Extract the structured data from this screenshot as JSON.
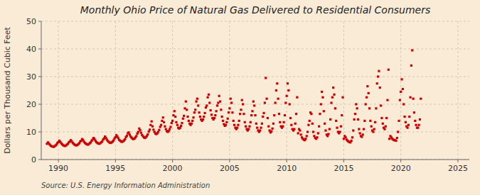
{
  "chart_data": {
    "type": "scatter",
    "title": "Monthly Ohio Price of Natural Gas Delivered to Residential Consumers",
    "ylabel": "Dollars per Thousand Cubic Feet",
    "annotation": "Source: U.S. Energy Information Administration",
    "color": "#cc0000",
    "marker": "square",
    "grid": true,
    "xlim": [
      1988.5,
      2026.0
    ],
    "ylim": [
      0,
      50
    ],
    "xticks": [
      1990,
      1995,
      2000,
      2005,
      2010,
      2015,
      2020,
      2025
    ],
    "yticks": [
      0,
      10,
      20,
      30,
      40,
      50
    ],
    "x": [
      1989,
      1989.0833333333333,
      1989.1666666666667,
      1989.25,
      1989.3333333333333,
      1989.4166666666667,
      1989.5,
      1989.5833333333333,
      1989.6666666666667,
      1989.75,
      1989.8333333333333,
      1989.9166666666667,
      1990,
      1990.0833333333333,
      1990.1666666666667,
      1990.25,
      1990.3333333333333,
      1990.4166666666667,
      1990.5,
      1990.5833333333333,
      1990.6666666666667,
      1990.75,
      1990.8333333333333,
      1990.9166666666667,
      1991,
      1991.0833333333333,
      1991.1666666666667,
      1991.25,
      1991.3333333333333,
      1991.4166666666667,
      1991.5,
      1991.5833333333333,
      1991.6666666666667,
      1991.75,
      1991.8333333333333,
      1991.9166666666667,
      1992,
      1992.0833333333333,
      1992.1666666666667,
      1992.25,
      1992.3333333333333,
      1992.4166666666667,
      1992.5,
      1992.5833333333333,
      1992.6666666666667,
      1992.75,
      1992.8333333333333,
      1992.9166666666667,
      1993,
      1993.0833333333333,
      1993.1666666666667,
      1993.25,
      1993.3333333333333,
      1993.4166666666667,
      1993.5,
      1993.5833333333333,
      1993.6666666666667,
      1993.75,
      1993.8333333333333,
      1993.9166666666667,
      1994,
      1994.0833333333333,
      1994.1666666666667,
      1994.25,
      1994.3333333333333,
      1994.4166666666667,
      1994.5,
      1994.5833333333333,
      1994.6666666666667,
      1994.75,
      1994.8333333333333,
      1994.9166666666667,
      1995,
      1995.0833333333333,
      1995.1666666666667,
      1995.25,
      1995.3333333333333,
      1995.4166666666667,
      1995.5,
      1995.5833333333333,
      1995.6666666666667,
      1995.75,
      1995.8333333333333,
      1995.9166666666667,
      1996,
      1996.0833333333333,
      1996.1666666666667,
      1996.25,
      1996.3333333333333,
      1996.4166666666667,
      1996.5,
      1996.5833333333333,
      1996.6666666666667,
      1996.75,
      1996.8333333333333,
      1996.9166666666667,
      1997,
      1997.0833333333333,
      1997.1666666666667,
      1997.25,
      1997.3333333333333,
      1997.4166666666667,
      1997.5,
      1997.5833333333333,
      1997.6666666666667,
      1997.75,
      1997.8333333333333,
      1997.9166666666667,
      1998,
      1998.0833333333333,
      1998.1666666666667,
      1998.25,
      1998.3333333333333,
      1998.4166666666667,
      1998.5,
      1998.5833333333333,
      1998.6666666666667,
      1998.75,
      1998.8333333333333,
      1998.9166666666667,
      1999,
      1999.0833333333333,
      1999.1666666666667,
      1999.25,
      1999.3333333333333,
      1999.4166666666667,
      1999.5,
      1999.5833333333333,
      1999.6666666666667,
      1999.75,
      1999.8333333333333,
      1999.9166666666667,
      2000,
      2000.0833333333333,
      2000.1666666666667,
      2000.25,
      2000.3333333333333,
      2000.4166666666667,
      2000.5,
      2000.5833333333333,
      2000.6666666666667,
      2000.75,
      2000.8333333333333,
      2000.9166666666667,
      2001,
      2001.0833333333333,
      2001.1666666666667,
      2001.25,
      2001.3333333333333,
      2001.4166666666667,
      2001.5,
      2001.5833333333333,
      2001.6666666666667,
      2001.75,
      2001.8333333333333,
      2001.9166666666667,
      2002,
      2002.0833333333333,
      2002.1666666666667,
      2002.25,
      2002.3333333333333,
      2002.4166666666667,
      2002.5,
      2002.5833333333333,
      2002.6666666666667,
      2002.75,
      2002.8333333333333,
      2002.9166666666667,
      2003,
      2003.0833333333333,
      2003.1666666666667,
      2003.25,
      2003.3333333333333,
      2003.4166666666667,
      2003.5,
      2003.5833333333333,
      2003.6666666666667,
      2003.75,
      2003.8333333333333,
      2003.9166666666667,
      2004,
      2004.0833333333333,
      2004.1666666666667,
      2004.25,
      2004.3333333333333,
      2004.4166666666667,
      2004.5,
      2004.5833333333333,
      2004.6666666666667,
      2004.75,
      2004.8333333333333,
      2004.9166666666667,
      2005,
      2005.0833333333333,
      2005.1666666666667,
      2005.25,
      2005.3333333333333,
      2005.4166666666667,
      2005.5,
      2005.5833333333333,
      2005.6666666666667,
      2005.75,
      2005.8333333333333,
      2005.9166666666667,
      2006,
      2006.0833333333333,
      2006.1666666666667,
      2006.25,
      2006.3333333333333,
      2006.4166666666667,
      2006.5,
      2006.5833333333333,
      2006.6666666666667,
      2006.75,
      2006.8333333333333,
      2006.9166666666667,
      2007,
      2007.0833333333333,
      2007.1666666666667,
      2007.25,
      2007.3333333333333,
      2007.4166666666667,
      2007.5,
      2007.5833333333333,
      2007.6666666666667,
      2007.75,
      2007.8333333333333,
      2007.9166666666667,
      2008,
      2008.0833333333333,
      2008.1666666666667,
      2008.25,
      2008.3333333333333,
      2008.4166666666667,
      2008.5,
      2008.5833333333333,
      2008.6666666666667,
      2008.75,
      2008.8333333333333,
      2008.9166666666667,
      2009,
      2009.0833333333333,
      2009.1666666666667,
      2009.25,
      2009.3333333333333,
      2009.4166666666667,
      2009.5,
      2009.5833333333333,
      2009.6666666666667,
      2009.75,
      2009.8333333333333,
      2009.9166666666667,
      2010,
      2010.0833333333333,
      2010.1666666666667,
      2010.25,
      2010.3333333333333,
      2010.4166666666667,
      2010.5,
      2010.5833333333333,
      2010.6666666666667,
      2010.75,
      2010.8333333333333,
      2010.9166666666667,
      2011,
      2011.0833333333333,
      2011.1666666666667,
      2011.25,
      2011.3333333333333,
      2011.4166666666667,
      2011.5,
      2011.5833333333333,
      2011.6666666666667,
      2011.75,
      2011.8333333333333,
      2011.9166666666667,
      2012,
      2012.0833333333333,
      2012.1666666666667,
      2012.25,
      2012.3333333333333,
      2012.4166666666667,
      2012.5,
      2012.5833333333333,
      2012.6666666666667,
      2012.75,
      2012.8333333333333,
      2012.9166666666667,
      2013,
      2013.0833333333333,
      2013.1666666666667,
      2013.25,
      2013.3333333333333,
      2013.4166666666667,
      2013.5,
      2013.5833333333333,
      2013.6666666666667,
      2013.75,
      2013.8333333333333,
      2013.9166666666667,
      2014,
      2014.0833333333333,
      2014.1666666666667,
      2014.25,
      2014.3333333333333,
      2014.4166666666667,
      2014.5,
      2014.5833333333333,
      2014.6666666666667,
      2014.75,
      2014.8333333333333,
      2014.9166666666667,
      2015,
      2015.0833333333333,
      2015.1666666666667,
      2015.25,
      2015.3333333333333,
      2015.4166666666667,
      2015.5,
      2015.5833333333333,
      2015.6666666666667,
      2015.75,
      2015.8333333333333,
      2015.9166666666667,
      2016,
      2016.0833333333333,
      2016.1666666666667,
      2016.25,
      2016.3333333333333,
      2016.4166666666667,
      2016.5,
      2016.5833333333333,
      2016.6666666666667,
      2016.75,
      2016.8333333333333,
      2016.9166666666667,
      2017,
      2017.0833333333333,
      2017.1666666666667,
      2017.25,
      2017.3333333333333,
      2017.4166666666667,
      2017.5,
      2017.5833333333333,
      2017.6666666666667,
      2017.75,
      2017.8333333333333,
      2017.9166666666667,
      2018,
      2018.0833333333333,
      2018.1666666666667,
      2018.25,
      2018.3333333333333,
      2018.4166666666667,
      2018.5,
      2018.5833333333333,
      2018.6666666666667,
      2018.75,
      2018.8333333333333,
      2018.9166666666667,
      2019,
      2019.0833333333333,
      2019.1666666666667,
      2019.25,
      2019.3333333333333,
      2019.4166666666667,
      2019.5,
      2019.5833333333333,
      2019.6666666666667,
      2019.75,
      2019.8333333333333,
      2019.9166666666667,
      2020,
      2020.0833333333333,
      2020.1666666666667,
      2020.25,
      2020.3333333333333,
      2020.4166666666667,
      2020.5,
      2020.5833333333333,
      2020.6666666666667,
      2020.75,
      2020.8333333333333,
      2020.9166666666667,
      2021,
      2021.0833333333333,
      2021.1666666666667,
      2021.25,
      2021.3333333333333,
      2021.4166666666667,
      2021.5,
      2021.5833333333333,
      2021.6666666666667,
      2021.75
    ],
    "values": [
      5.7,
      6.2,
      5.8,
      5.4,
      5.0,
      4.8,
      4.7,
      4.6,
      4.8,
      5.1,
      5.4,
      6.0,
      6.3,
      6.8,
      6.4,
      5.9,
      5.5,
      5.2,
      5.0,
      4.9,
      5.1,
      5.4,
      5.7,
      6.2,
      6.5,
      7.0,
      6.6,
      6.1,
      5.7,
      5.4,
      5.2,
      5.1,
      5.3,
      5.6,
      5.9,
      6.5,
      6.8,
      7.4,
      7.0,
      6.4,
      6.0,
      5.7,
      5.5,
      5.4,
      5.6,
      5.9,
      6.2,
      6.8,
      7.2,
      7.8,
      7.4,
      6.8,
      6.3,
      6.0,
      5.8,
      5.7,
      5.9,
      6.2,
      6.5,
      7.2,
      7.6,
      8.3,
      7.8,
      7.2,
      6.7,
      6.4,
      6.1,
      6.0,
      6.2,
      6.5,
      6.9,
      7.6,
      8.1,
      8.8,
      8.3,
      7.7,
      7.1,
      6.8,
      6.5,
      6.4,
      6.6,
      6.9,
      7.3,
      8.1,
      8.6,
      9.5,
      9.8,
      9.0,
      8.3,
      7.9,
      7.5,
      7.4,
      7.6,
      8.0,
      8.5,
      9.4,
      10.0,
      11.2,
      10.6,
      9.7,
      8.9,
      8.4,
      8.0,
      7.8,
      8.1,
      8.5,
      9.1,
      10.1,
      10.8,
      12.5,
      13.8,
      12.0,
      10.8,
      10.0,
      9.4,
      9.2,
      9.5,
      10.0,
      10.7,
      11.8,
      12.5,
      14.0,
      15.2,
      13.5,
      12.0,
      11.0,
      10.3,
      10.0,
      10.3,
      11.0,
      11.8,
      13.2,
      14.0,
      16.0,
      17.5,
      15.5,
      13.5,
      12.5,
      11.5,
      11.2,
      11.5,
      12.2,
      13.2,
      14.8,
      15.8,
      18.5,
      21.0,
      18.0,
      15.5,
      14.0,
      13.0,
      12.5,
      13.0,
      14.0,
      15.2,
      17.0,
      18.0,
      21.0,
      22.0,
      19.5,
      17.0,
      15.5,
      14.5,
      14.0,
      14.5,
      15.5,
      16.8,
      18.8,
      19.5,
      22.5,
      23.5,
      20.5,
      17.8,
      16.2,
      15.0,
      14.5,
      15.0,
      16.0,
      17.5,
      19.5,
      20.5,
      23.0,
      21.0,
      18.0,
      15.5,
      14.0,
      12.8,
      12.2,
      12.5,
      13.5,
      14.8,
      17.0,
      18.5,
      22.0,
      20.5,
      17.0,
      14.0,
      12.5,
      11.5,
      11.0,
      11.5,
      12.5,
      14.0,
      16.5,
      18.0,
      21.5,
      20.0,
      16.5,
      13.5,
      12.0,
      11.0,
      10.5,
      11.0,
      12.0,
      13.5,
      16.0,
      17.5,
      21.0,
      19.5,
      16.0,
      13.0,
      11.5,
      10.5,
      10.0,
      10.5,
      11.5,
      13.0,
      15.5,
      16.8,
      20.5,
      29.5,
      22.0,
      15.0,
      12.0,
      10.5,
      9.8,
      10.2,
      11.2,
      13.0,
      16.0,
      20.5,
      25.0,
      27.5,
      22.0,
      16.5,
      13.5,
      12.0,
      11.5,
      12.0,
      13.5,
      16.0,
      20.5,
      23.0,
      27.5,
      25.0,
      20.0,
      15.0,
      12.5,
      11.0,
      10.5,
      11.0,
      13.0,
      16.5,
      22.5,
      9.5,
      11.0,
      10.5,
      9.0,
      8.0,
      7.5,
      7.2,
      7.0,
      7.5,
      8.5,
      10.0,
      12.5,
      14.0,
      17.0,
      16.5,
      13.0,
      10.0,
      8.5,
      7.8,
      7.5,
      8.0,
      9.5,
      12.0,
      16.5,
      20.0,
      24.5,
      22.5,
      17.5,
      13.0,
      10.5,
      9.0,
      8.5,
      9.2,
      11.0,
      14.5,
      20.5,
      22.5,
      26.0,
      23.5,
      18.5,
      14.0,
      11.5,
      10.0,
      9.5,
      10.0,
      12.0,
      16.0,
      22.5,
      7.5,
      8.5,
      8.0,
      7.2,
      6.8,
      6.5,
      6.3,
      6.2,
      6.8,
      8.0,
      10.5,
      14.5,
      16.5,
      20.0,
      18.5,
      14.5,
      11.0,
      9.5,
      8.5,
      8.2,
      9.0,
      11.0,
      14.0,
      20.0,
      22.5,
      26.5,
      24.0,
      18.5,
      14.0,
      12.0,
      10.5,
      10.0,
      11.0,
      13.5,
      18.5,
      27.5,
      30.0,
      32.0,
      26.0,
      19.5,
      15.0,
      13.0,
      11.5,
      11.0,
      12.0,
      15.0,
      21.5,
      32.5,
      7.5,
      8.5,
      8.0,
      7.5,
      7.2,
      7.0,
      7.0,
      6.8,
      7.8,
      10.0,
      14.0,
      21.5,
      24.5,
      29.0,
      25.5,
      20.0,
      15.5,
      13.5,
      12.0,
      11.5,
      12.5,
      15.5,
      22.5,
      34.0,
      39.5,
      22.0,
      17.0,
      14.0,
      12.5,
      11.5,
      11.5,
      12.5,
      14.5,
      22.0
    ]
  }
}
